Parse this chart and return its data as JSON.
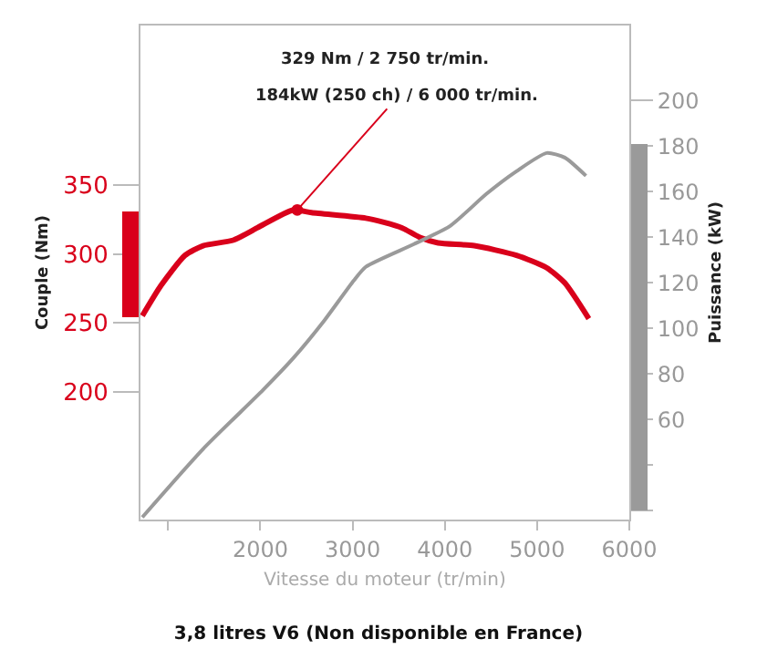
{
  "chart_data": {
    "type": "line",
    "title": "3,8 litres V6 (Non disponible en France)",
    "xlabel": "Vitesse du moteur (tr/min)",
    "ylabel": "Couple (Nm)",
    "y2label": "Puissance (kW)",
    "x": [
      720,
      922,
      1183,
      1379,
      1706,
      1967,
      2359,
      2555,
      3143,
      3339,
      3535,
      3731,
      3927,
      4319,
      4777,
      5104,
      5300,
      5561
    ],
    "series": [
      {
        "name": null,
        "color": "#d9001b",
        "values": [
          255,
          277,
          299,
          306,
          310,
          319,
          332,
          330,
          326,
          323,
          319,
          312,
          308,
          306,
          299,
          290,
          279,
          253
        ]
      },
      {
        "name": null,
        "color": "#9a9a9a",
        "axis": "y2",
        "x": [
          720,
          1379,
          2031,
          2359,
          2685,
          3013,
          3143,
          3666,
          4058,
          4450,
          4777,
          5104,
          5300,
          5530
        ],
        "values": [
          17,
          47,
          73,
          87,
          103,
          121,
          127,
          137,
          145,
          159,
          169,
          177,
          175,
          167
        ]
      }
    ],
    "xlim": [
      700,
      6000
    ],
    "xticks": [
      {
        "value": 1000,
        "label": null
      },
      2000,
      3000,
      4000,
      5000,
      6000
    ],
    "ylim": [
      107,
      466
    ],
    "yticks": [
      200,
      250,
      300,
      350
    ],
    "y2lim": [
      16,
      233
    ],
    "y2ticks": [
      {
        "value": 20,
        "label": null
      },
      {
        "value": 40,
        "label": null
      },
      60,
      80,
      100,
      120,
      140,
      160,
      180,
      200
    ],
    "annotations": [
      "329 Nm / 2 750 tr/min.",
      {
        "text": "184kW (250 ch) / 6 000 tr/min.",
        "x": 2400,
        "y": 332
      }
    ],
    "grid": false,
    "marker": "none",
    "line_style": "solid"
  }
}
